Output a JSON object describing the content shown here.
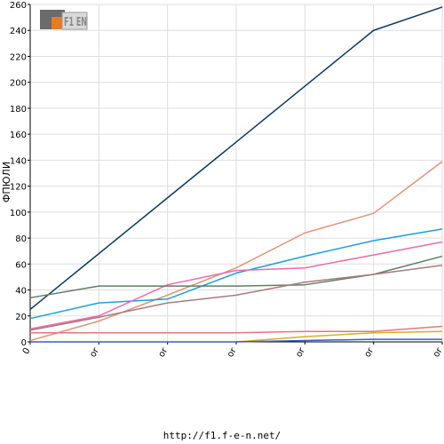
{
  "logo": {
    "text": "F1 EN"
  },
  "footer": {
    "url": "http://f1.f-e-n.net/"
  },
  "chart_data": {
    "type": "line",
    "ylabel": "ФПЮЛИ",
    "ylim": [
      0,
      260
    ],
    "yticks": [
      0,
      20,
      40,
      60,
      80,
      100,
      120,
      140,
      160,
      180,
      200,
      220,
      240,
      260
    ],
    "x": [
      0,
      1,
      2,
      3,
      4,
      5,
      6
    ],
    "xtick_labels": [
      "0",
      "or",
      "or",
      "or",
      "or",
      "or",
      "or"
    ],
    "grid": true,
    "series": [
      {
        "color": "#0b3a66",
        "values": [
          25,
          68,
          111,
          154,
          197,
          240,
          258
        ]
      },
      {
        "color": "#e2937a",
        "values": [
          1,
          16,
          36,
          57,
          84,
          99,
          139
        ]
      },
      {
        "color": "#1aa0dc",
        "values": [
          18,
          30,
          33,
          53,
          66,
          78,
          87
        ]
      },
      {
        "color": "#ee6aa8",
        "values": [
          10,
          20,
          44,
          55,
          57,
          67,
          77
        ]
      },
      {
        "color": "#5f7f63",
        "values": [
          34,
          43,
          43,
          43,
          44,
          52,
          66
        ]
      },
      {
        "color": "#a87a7f",
        "values": [
          9,
          19,
          30,
          36,
          46,
          52,
          59
        ]
      },
      {
        "color": "#e9757a",
        "values": [
          7,
          7,
          7,
          7,
          8,
          8,
          12
        ]
      },
      {
        "color": "#d4b020",
        "values": [
          null,
          null,
          null,
          0,
          4,
          7,
          8
        ]
      },
      {
        "color": "#3b5bc4",
        "values": [
          0,
          0,
          0,
          0,
          1,
          2,
          2
        ]
      }
    ]
  }
}
